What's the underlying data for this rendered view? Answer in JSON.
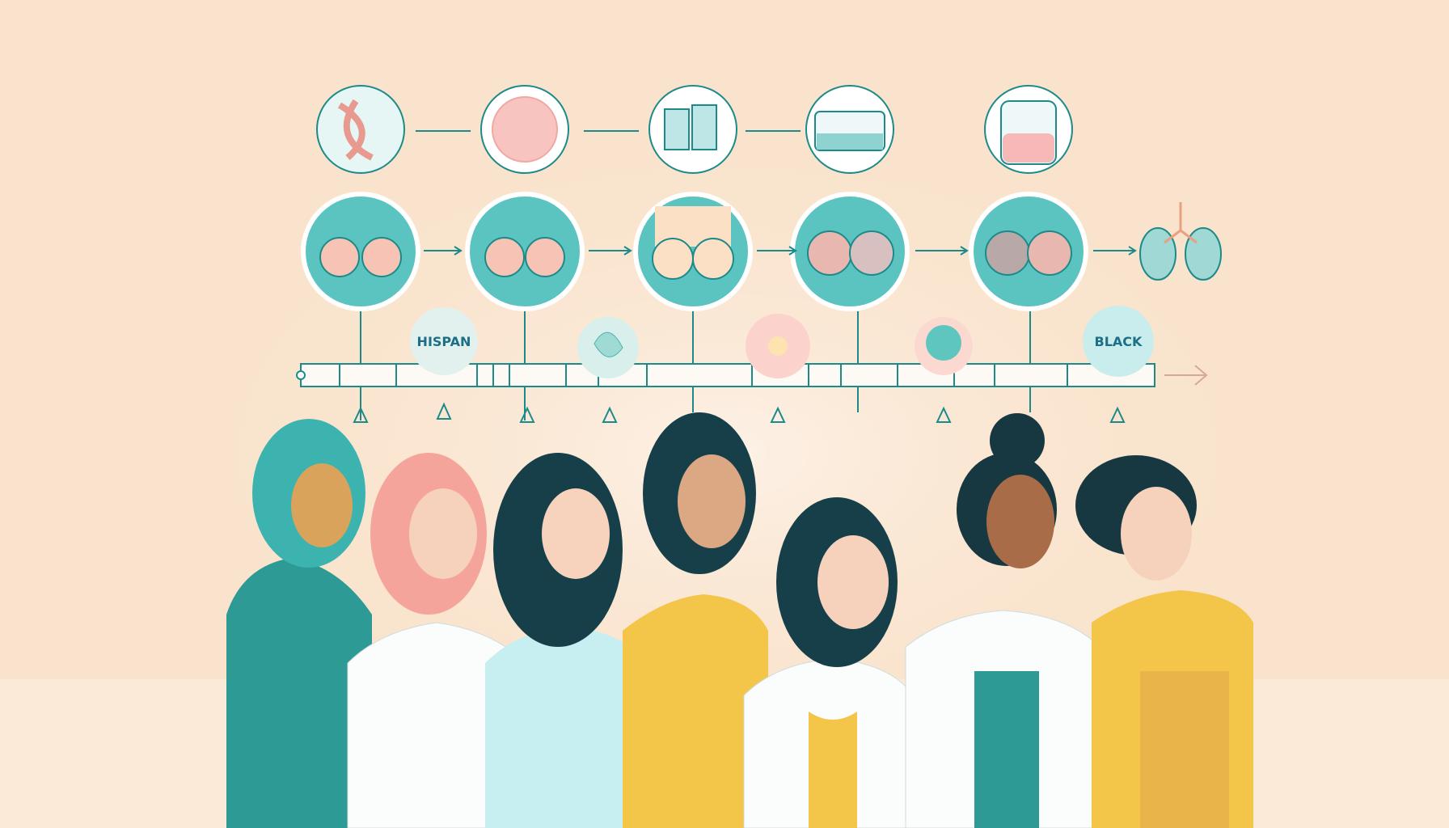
{
  "labels": {
    "hispanic": "HISPAN",
    "black": "BLACK"
  },
  "colors": {
    "background": "#f9e3cc",
    "teal": "#5cc4c0",
    "dark_teal": "#1d7f80",
    "pink": "#f6b9b0",
    "yellow": "#f3c548",
    "white_coat": "#fbfcfc"
  },
  "icons": [
    "dna-icon",
    "citrus-slice-icon",
    "document-icon",
    "jar-icon",
    "beaker-icon",
    "lungs-icon",
    "ribbon-icon",
    "flower-icon"
  ]
}
